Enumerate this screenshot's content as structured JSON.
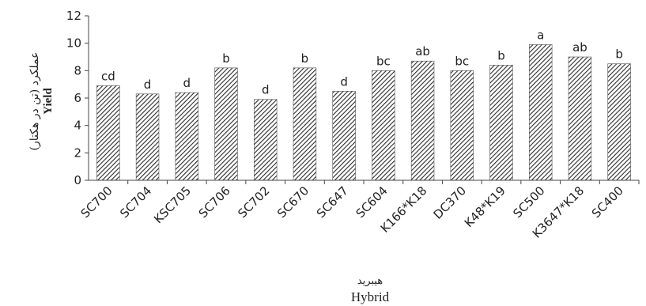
{
  "chart_data": {
    "type": "bar",
    "categories": [
      "SC700",
      "SC704",
      "KSC705",
      "SC706",
      "SC702",
      "SC670",
      "SC647",
      "SC604",
      "K166*K18",
      "DC370",
      "K48*K19",
      "SC500",
      "K3647*K18",
      "SC400"
    ],
    "values": [
      6.9,
      6.3,
      6.4,
      8.2,
      5.9,
      8.2,
      6.5,
      8.0,
      8.7,
      8.0,
      8.4,
      9.9,
      9.0,
      8.5
    ],
    "letters": [
      "cd",
      "d",
      "d",
      "b",
      "d",
      "b",
      "d",
      "bc",
      "ab",
      "bc",
      "b",
      "a",
      "ab",
      "b"
    ],
    "xlabel_fa": "هیبرید",
    "xlabel": "Hybrid",
    "ylabel_fa": "عملکرد (تن در هکتار)",
    "ylabel": "Yield",
    "ylim": [
      0,
      12
    ],
    "yticks": [
      0,
      2,
      4,
      6,
      8,
      10,
      12
    ],
    "grid": false,
    "fill_pattern": "diagonal-hatch",
    "bar_color": "#333333"
  }
}
